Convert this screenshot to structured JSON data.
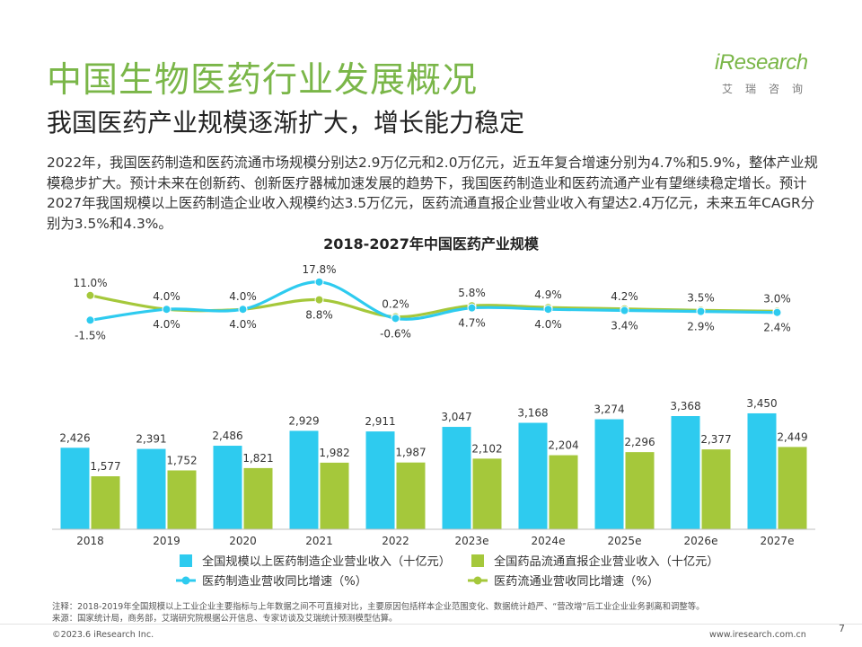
{
  "header": {
    "title": "中国生物医药行业发展概况",
    "subtitle": "我国医药产业规模逐渐扩大，增长能力稳定"
  },
  "logo": {
    "name": "iResearch",
    "cn": "艾瑞咨询"
  },
  "paragraph": "2022年，我国医药制造和医药流通市场规模分别达2.9万亿元和2.0万亿元，近五年复合增速分别为4.7%和5.9%，整体产业规模稳步扩大。预计未来在创新药、创新医疗器械加速发展的趋势下，我国医药制造业和医药流通产业有望继续稳定增长。预计2027年我国规模以上医药制造企业收入规模约达3.5万亿元，医药流通直报企业营业收入有望达2.4万亿元，未来五年CAGR分别为3.5%和4.3%。",
  "colors": {
    "blue": "#2ECBEF",
    "green": "#A5C83B",
    "title_green": "#7AB648"
  },
  "chart_data": {
    "title": "2018-2027年中国医药产业规模",
    "type": "bar",
    "categories": [
      "2018",
      "2019",
      "2020",
      "2021",
      "2022",
      "2023e",
      "2024e",
      "2025e",
      "2026e",
      "2027e"
    ],
    "bar_series": [
      {
        "name": "全国规模以上医药制造企业营业收入（十亿元）",
        "color": "#2ECBEF",
        "values": [
          2426,
          2391,
          2486,
          2929,
          2911,
          3047,
          3168,
          3274,
          3368,
          3450
        ],
        "labels": [
          "2,426",
          "2,391",
          "2,486",
          "2,929",
          "2,911",
          "3,047",
          "3,168",
          "3,274",
          "3,368",
          "3,450"
        ]
      },
      {
        "name": "全国药品流通直报企业营业收入（十亿元）",
        "color": "#A5C83B",
        "values": [
          1577,
          1752,
          1821,
          1982,
          1987,
          2102,
          2204,
          2296,
          2377,
          2449
        ],
        "labels": [
          "1,577",
          "1,752",
          "1,821",
          "1,982",
          "1,987",
          "2,102",
          "2,204",
          "2,296",
          "2,377",
          "2,449"
        ]
      }
    ],
    "line_series": [
      {
        "name": "医药制造业营收同比增速（%）",
        "color": "#2ECBEF",
        "values": [
          -1.5,
          4.0,
          4.0,
          17.8,
          -0.6,
          4.7,
          4.0,
          3.4,
          2.9,
          2.4
        ],
        "labels": [
          "-1.5%",
          "4.0%",
          "4.0%",
          "17.8%",
          "-0.6%",
          "4.7%",
          "4.0%",
          "3.4%",
          "2.9%",
          "2.4%"
        ]
      },
      {
        "name": "医药流通业营收同比增速（%）",
        "color": "#A5C83B",
        "values": [
          11.0,
          4.0,
          4.0,
          8.8,
          0.2,
          5.8,
          4.9,
          4.2,
          3.5,
          3.0
        ],
        "labels": [
          "11.0%",
          "4.0%",
          "4.0%",
          "8.8%",
          "0.2%",
          "5.8%",
          "4.9%",
          "4.2%",
          "3.5%",
          "3.0%"
        ]
      }
    ]
  },
  "footnote": {
    "note": "注释：2018-2019年全国规模以上工业企业主要指标与上年数据之间不可直接对比，主要原因包括样本企业范围变化、数据统计趋严、“营改增”后工业企业业务剥离和调整等。",
    "source": "来源：国家统计局，商务部，艾瑞研究院根据公开信息、专家访谈及艾瑞统计预测模型估算。"
  },
  "footer": {
    "copyright": "©2023.6 iResearch Inc.",
    "website": "www.iresearch.com.cn",
    "page": "7"
  }
}
